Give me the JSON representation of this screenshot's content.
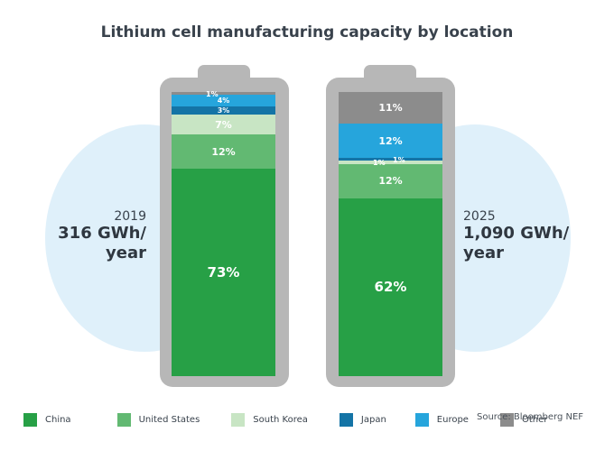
{
  "title": "Lithium cell manufacturing capacity by location",
  "colors": {
    "China": "#27a046",
    "United States": "#62b972",
    "South Korea": "#c8e5c4",
    "Japan": "#1474a6",
    "Europe": "#26a5dc",
    "Other": "#8c8c8c",
    "battery": "#b7b7b7",
    "background_blob": "#dff0fa"
  },
  "chart_data": {
    "type": "bar",
    "stacked": true,
    "categories": [
      "2019",
      "2025"
    ],
    "series": [
      {
        "name": "China",
        "values": [
          73,
          62
        ]
      },
      {
        "name": "United States",
        "values": [
          12,
          12
        ]
      },
      {
        "name": "South Korea",
        "values": [
          7,
          1
        ]
      },
      {
        "name": "Japan",
        "values": [
          3,
          1
        ]
      },
      {
        "name": "Europe",
        "values": [
          4,
          12
        ]
      },
      {
        "name": "Other",
        "values": [
          1,
          11
        ]
      }
    ],
    "segment_labels": [
      [
        "73%",
        "12%",
        "7%",
        "3%",
        "4%",
        "1%"
      ],
      [
        "62%",
        "12%",
        "1%",
        "1%",
        "12%",
        "11%"
      ]
    ],
    "totals": [
      {
        "year": "2019",
        "line1": "316 GWh/",
        "line2": "year"
      },
      {
        "year": "2025",
        "line1": "1,090 GWh/",
        "line2": "year"
      }
    ],
    "legend": [
      "China",
      "United States",
      "South Korea",
      "Japan",
      "Europe",
      "Other"
    ],
    "source": "Source: Bloomberg NEF"
  }
}
